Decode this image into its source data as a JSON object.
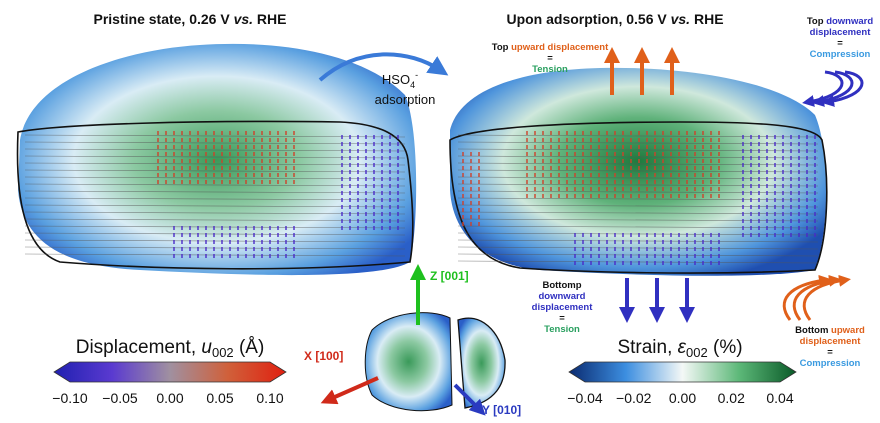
{
  "left_title": {
    "pre": "Pristine state, 0.26 V ",
    "italic": "vs.",
    "post": " RHE"
  },
  "right_title": {
    "pre": "Upon adsorption, 0.56 V ",
    "italic": "vs.",
    "post": " RHE"
  },
  "transition": {
    "species": "HSO",
    "subscript": "4",
    "superscript": "-",
    "label": "adsorption"
  },
  "top_up": {
    "line1": "Top",
    "line2": "upward displacement",
    "equals": "=",
    "result": "Tension"
  },
  "top_down": {
    "word1": "Top",
    "word2": "downward",
    "line2": "displacement",
    "equals": "=",
    "result": "Compression"
  },
  "bottom_down": {
    "line1": "Bottomp",
    "word": "downward",
    "line2": "displacement",
    "equals": "=",
    "result": "Tension"
  },
  "bottom_up": {
    "line1": "Bottom",
    "word": "upward",
    "line2": "displacement",
    "equals": "=",
    "result": "Compression"
  },
  "axes": {
    "z": "Z [001]",
    "x": "X [100]",
    "y": "Y [010]"
  },
  "colorbars": [
    {
      "title": "Displacement, ",
      "symbol": "u",
      "subscript": "002",
      "unit": " (Å)",
      "ticks": [
        "−0.10",
        "−0.05",
        "0.00",
        "0.05",
        "0.10"
      ]
    },
    {
      "title": "Strain, ",
      "symbol": "ε",
      "subscript": "002",
      "unit": " (%)",
      "ticks": [
        "−0.04",
        "−0.02",
        "0.00",
        "0.02",
        "0.04"
      ]
    }
  ]
}
